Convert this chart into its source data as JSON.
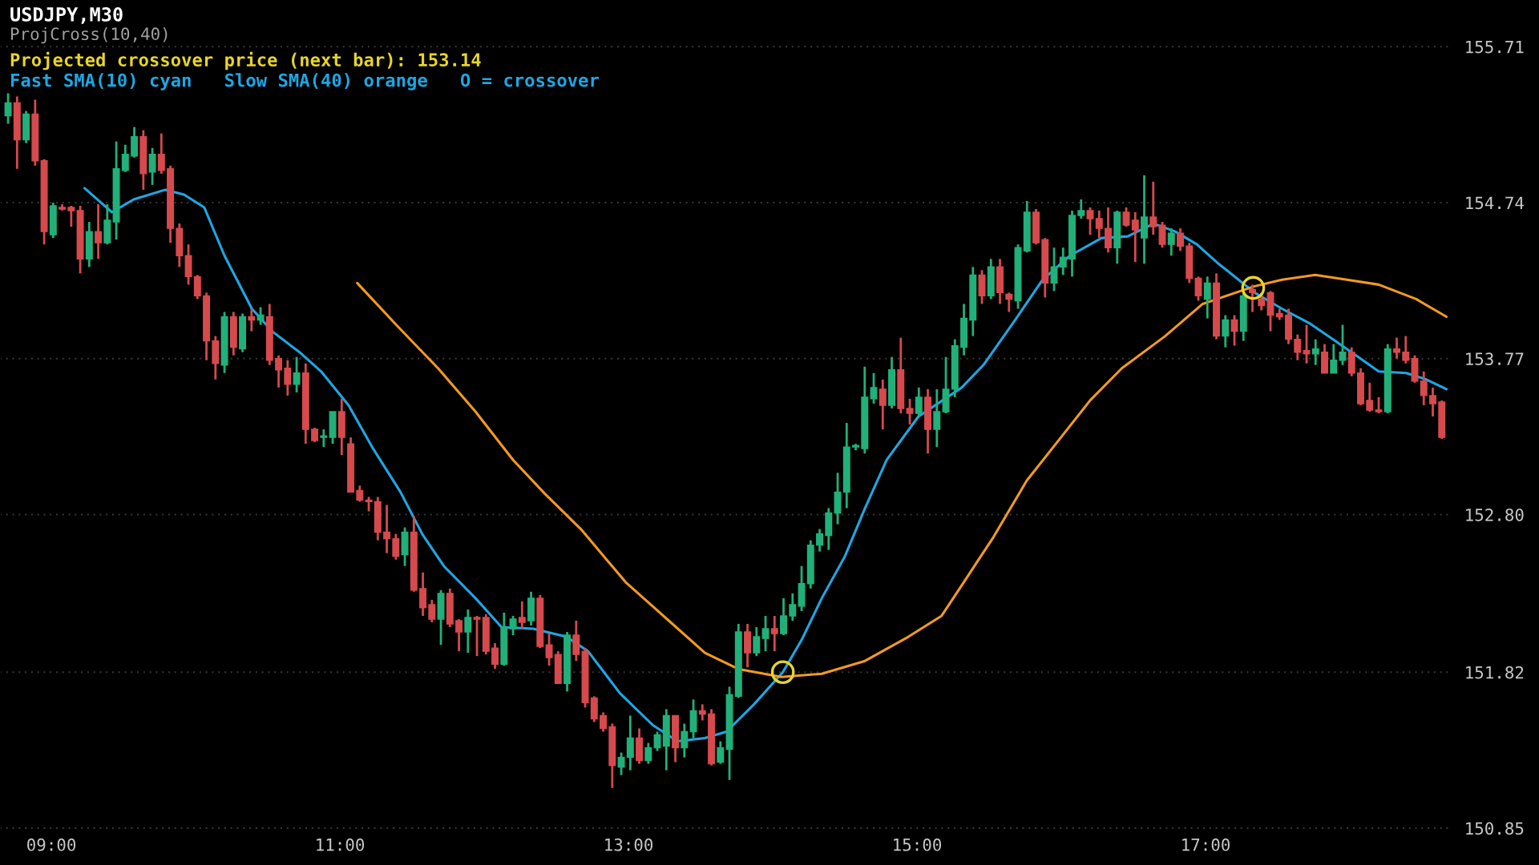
{
  "chart_data": {
    "type": "candlestick",
    "title": "USDJPY,M30",
    "subtitle": "ProjCross(10,40)",
    "annotations": [
      "Projected crossover price (next bar): 153.14",
      "Fast SMA(10) cyan   Slow SMA(40) orange   O = crossover"
    ],
    "colors": [
      "#22b07a",
      "#d64a4d",
      "#22b07a",
      "#d64a4d",
      "#d64a4d",
      "#22b07a",
      "#d64a4d",
      "#d64a4d",
      "#d64a4d",
      "#22b07a",
      "#d64a4d",
      "#22b07a",
      "#22b07a",
      "#22b07a",
      "#22b07a",
      "#d64a4d",
      "#22b07a",
      "#d64a4d",
      "#d64a4d",
      "#d64a4d",
      "#d64a4d",
      "#d64a4d",
      "#d64a4d",
      "#d64a4d",
      "#22b07a",
      "#d64a4d",
      "#22b07a",
      "#d64a4d",
      "#22b07a",
      "#d64a4d",
      "#d64a4d",
      "#d64a4d",
      "#22b07a",
      "#d64a4d",
      "#d64a4d",
      "#22b07a",
      "#22b07a",
      "#d64a4d",
      "#d64a4d",
      "#d64a4d",
      "#d64a4d",
      "#d64a4d",
      "#d64a4d",
      "#d64a4d",
      "#22b07a",
      "#d64a4d",
      "#d64a4d",
      "#d64a4d",
      "#22b07a",
      "#d64a4d",
      "#d64a4d",
      "#22b07a",
      "#d64a4d",
      "#d64a4d",
      "#d64a4d",
      "#22b07a",
      "#22b07a",
      "#d64a4d",
      "#22b07a",
      "#d64a4d",
      "#d64a4d",
      "#d64a4d",
      "#22b07a",
      "#d64a4d",
      "#d64a4d",
      "#d64a4d",
      "#d64a4d",
      "#d64a4d",
      "#22b07a",
      "#22b07a",
      "#d64a4d",
      "#22b07a",
      "#22b07a",
      "#22b07a",
      "#d64a4d",
      "#22b07a",
      "#22b07a",
      "#d64a4d",
      "#d64a4d",
      "#22b07a",
      "#22b07a",
      "#22b07a",
      "#d64a4d",
      "#22b07a",
      "#22b07a",
      "#d64a4d",
      "#22b07a",
      "#22b07a",
      "#22b07a",
      "#22b07a",
      "#22b07a",
      "#22b07a",
      "#22b07a",
      "#22b07a",
      "#22b07a",
      "#22b07a",
      "#22b07a",
      "#d64a4d",
      "#22b07a",
      "#d64a4d",
      "#d64a4d",
      "#22b07a",
      "#d64a4d",
      "#22b07a",
      "#22b07a",
      "#22b07a",
      "#22b07a",
      "#22b07a",
      "#d64a4d",
      "#22b07a",
      "#d64a4d",
      "#d64a4d",
      "#22b07a",
      "#22b07a",
      "#d64a4d",
      "#d64a4d",
      "#22b07a",
      "#22b07a",
      "#22b07a",
      "#22b07a",
      "#d64a4d",
      "#d64a4d",
      "#d64a4d",
      "#22b07a",
      "#d64a4d",
      "#d64a4d",
      "#22b07a",
      "#d64a4d",
      "#d64a4d",
      "#22b07a",
      "#d64a4d",
      "#d64a4d",
      "#d64a4d",
      "#22b07a",
      "#d64a4d",
      "#22b07a",
      "#d64a4d",
      "#22b07a",
      "#d64a4d",
      "#d64a4d",
      "#d64a4d",
      "#d64a4d",
      "#d64a4d",
      "#d64a4d",
      "#d64a4d",
      "#22b07a",
      "#d64a4d",
      "#22b07a",
      "#22b07a",
      "#d64a4d",
      "#d64a4d",
      "#d64a4d",
      "#d64a4d",
      "#22b07a",
      "#d64a4d",
      "#d64a4d",
      "#d64a4d",
      "#d64a4d",
      "#d64a4d",
      "#d64a4d"
    ],
    "x": [
      8.7,
      8.7625,
      8.825,
      8.8875,
      8.95,
      9.0125,
      9.075,
      9.1375,
      9.2,
      9.2625,
      9.325,
      9.3875,
      9.45,
      9.5125,
      9.575,
      9.6375,
      9.7,
      9.7625,
      9.825,
      9.8875,
      9.95,
      10.0125,
      10.075,
      10.1375,
      10.2,
      10.2625,
      10.325,
      10.3875,
      10.45,
      10.5125,
      10.575,
      10.6375,
      10.7,
      10.7625,
      10.825,
      10.8875,
      10.95,
      11.0125,
      11.075,
      11.1375,
      11.2,
      11.2625,
      11.325,
      11.3875,
      11.45,
      11.5125,
      11.575,
      11.6375,
      11.7,
      11.7625,
      11.825,
      11.8875,
      11.95,
      12.0125,
      12.075,
      12.1375,
      12.2,
      12.2625,
      12.325,
      12.3875,
      12.45,
      12.5125,
      12.575,
      12.6375,
      12.7,
      12.7625,
      12.825,
      12.8875,
      12.95,
      13.0125,
      13.075,
      13.1375,
      13.2,
      13.2625,
      13.325,
      13.3875,
      13.45,
      13.5125,
      13.575,
      13.6375,
      13.7,
      13.7625,
      13.825,
      13.8875,
      13.95,
      14.0125,
      14.075,
      14.1375,
      14.2,
      14.2625,
      14.325,
      14.3875,
      14.45,
      14.5125,
      14.575,
      14.6375,
      14.7,
      14.7625,
      14.825,
      14.8875,
      14.95,
      15.0125,
      15.075,
      15.1375,
      15.2,
      15.2625,
      15.325,
      15.3875,
      15.45,
      15.5125,
      15.575,
      15.6375,
      15.7,
      15.7625,
      15.825,
      15.8875,
      15.95,
      16.0125,
      16.075,
      16.1375,
      16.2,
      16.2625,
      16.325,
      16.3875,
      16.45,
      16.5125,
      16.575,
      16.6375,
      16.7,
      16.7625,
      16.825,
      16.8875,
      16.95,
      17.0125,
      17.075,
      17.1375,
      17.2,
      17.2625,
      17.325,
      17.3875,
      17.45,
      17.5125,
      17.575,
      17.6375,
      17.7,
      17.7625,
      17.825,
      17.8875,
      17.95,
      18.0125,
      18.075,
      18.1375,
      18.2,
      18.2625,
      18.325,
      18.3875,
      18.45,
      18.5125,
      18.575,
      18.6375
    ],
    "ohlc": [
      [
        155.28,
        155.42,
        155.23,
        155.36
      ],
      [
        155.36,
        155.4,
        154.95,
        155.13
      ],
      [
        155.13,
        155.31,
        155.11,
        155.29
      ],
      [
        155.29,
        155.38,
        154.97,
        155.0
      ],
      [
        155.0,
        155.01,
        154.48,
        154.56
      ],
      [
        154.54,
        154.74,
        154.52,
        154.72
      ],
      [
        154.71,
        154.73,
        154.69,
        154.7
      ],
      [
        154.71,
        154.72,
        154.59,
        154.69
      ],
      [
        154.69,
        154.72,
        154.3,
        154.39
      ],
      [
        154.39,
        154.62,
        154.34,
        154.56
      ],
      [
        154.56,
        154.73,
        154.39,
        154.49
      ],
      [
        154.49,
        154.73,
        154.48,
        154.63
      ],
      [
        154.62,
        155.12,
        154.51,
        154.95
      ],
      [
        154.94,
        155.1,
        154.93,
        155.04
      ],
      [
        155.03,
        155.21,
        155.02,
        155.15
      ],
      [
        155.15,
        155.19,
        154.82,
        154.92
      ],
      [
        154.93,
        155.08,
        154.85,
        155.04
      ],
      [
        155.04,
        155.17,
        154.92,
        154.94
      ],
      [
        154.95,
        154.97,
        154.49,
        154.58
      ],
      [
        154.58,
        154.61,
        154.34,
        154.41
      ],
      [
        154.41,
        154.48,
        154.23,
        154.28
      ],
      [
        154.28,
        154.29,
        154.14,
        154.16
      ],
      [
        154.16,
        154.18,
        153.76,
        153.88
      ],
      [
        153.88,
        153.91,
        153.64,
        153.74
      ],
      [
        153.73,
        154.06,
        153.68,
        154.03
      ],
      [
        154.03,
        154.06,
        153.79,
        153.84
      ],
      [
        153.83,
        154.05,
        153.81,
        154.03
      ],
      [
        154.03,
        154.08,
        153.94,
        154.01
      ],
      [
        154.01,
        154.09,
        153.98,
        154.04
      ],
      [
        154.03,
        154.11,
        153.73,
        153.76
      ],
      [
        153.77,
        153.79,
        153.59,
        153.7
      ],
      [
        153.71,
        153.76,
        153.54,
        153.61
      ],
      [
        153.61,
        153.78,
        153.56,
        153.68
      ],
      [
        153.68,
        153.74,
        153.24,
        153.33
      ],
      [
        153.33,
        153.34,
        153.25,
        153.26
      ],
      [
        153.28,
        153.33,
        153.22,
        153.29
      ],
      [
        153.28,
        153.44,
        153.24,
        153.44
      ],
      [
        153.44,
        153.52,
        153.17,
        153.28
      ],
      [
        153.24,
        153.28,
        152.94,
        152.94
      ],
      [
        152.95,
        152.98,
        152.88,
        152.89
      ],
      [
        152.89,
        152.91,
        152.82,
        152.88
      ],
      [
        152.88,
        152.91,
        152.64,
        152.69
      ],
      [
        152.69,
        152.86,
        152.56,
        152.65
      ],
      [
        152.65,
        152.68,
        152.52,
        152.54
      ],
      [
        152.55,
        152.72,
        152.48,
        152.69
      ],
      [
        152.69,
        152.79,
        152.32,
        152.33
      ],
      [
        152.34,
        152.44,
        152.17,
        152.22
      ],
      [
        152.24,
        152.27,
        152.13,
        152.15
      ],
      [
        152.15,
        152.33,
        151.99,
        152.31
      ],
      [
        152.31,
        152.34,
        152.1,
        152.12
      ],
      [
        152.14,
        152.15,
        151.95,
        152.07
      ],
      [
        152.07,
        152.21,
        151.94,
        152.16
      ],
      [
        152.16,
        152.17,
        151.92,
        152.15
      ],
      [
        152.16,
        152.18,
        151.93,
        151.95
      ],
      [
        151.97,
        152.0,
        151.84,
        151.87
      ],
      [
        151.87,
        152.19,
        151.86,
        152.1
      ],
      [
        152.09,
        152.17,
        152.05,
        152.15
      ],
      [
        152.16,
        152.26,
        152.09,
        152.13
      ],
      [
        152.14,
        152.32,
        152.11,
        152.28
      ],
      [
        152.28,
        152.3,
        151.97,
        151.98
      ],
      [
        151.99,
        152.06,
        151.86,
        151.91
      ],
      [
        151.93,
        151.95,
        151.75,
        151.75
      ],
      [
        151.75,
        152.07,
        151.7,
        152.05
      ],
      [
        152.05,
        152.14,
        151.89,
        151.93
      ],
      [
        151.95,
        151.97,
        151.6,
        151.63
      ],
      [
        151.66,
        151.67,
        151.51,
        151.53
      ],
      [
        151.55,
        151.57,
        151.45,
        151.47
      ],
      [
        151.48,
        151.5,
        151.1,
        151.24
      ],
      [
        151.23,
        151.32,
        151.18,
        151.29
      ],
      [
        151.29,
        151.55,
        151.21,
        151.41
      ],
      [
        151.41,
        151.47,
        151.25,
        151.27
      ],
      [
        151.27,
        151.38,
        151.25,
        151.35
      ],
      [
        151.35,
        151.45,
        151.33,
        151.43
      ],
      [
        151.36,
        151.59,
        151.21,
        151.55
      ],
      [
        151.55,
        151.55,
        151.26,
        151.35
      ],
      [
        151.35,
        151.5,
        151.29,
        151.45
      ],
      [
        151.45,
        151.65,
        151.41,
        151.58
      ],
      [
        151.58,
        151.62,
        151.52,
        151.56
      ],
      [
        151.56,
        151.59,
        151.24,
        151.25
      ],
      [
        151.26,
        151.39,
        151.25,
        151.35
      ],
      [
        151.34,
        151.73,
        151.15,
        151.68
      ],
      [
        151.67,
        152.12,
        151.66,
        152.07
      ],
      [
        152.07,
        152.12,
        151.85,
        151.94
      ],
      [
        151.94,
        152.1,
        151.92,
        152.04
      ],
      [
        152.03,
        152.17,
        151.95,
        152.09
      ],
      [
        152.09,
        152.17,
        151.95,
        152.06
      ],
      [
        152.06,
        152.28,
        152.05,
        152.17
      ],
      [
        152.17,
        152.31,
        152.14,
        152.24
      ],
      [
        152.23,
        152.48,
        152.2,
        152.37
      ],
      [
        152.37,
        152.64,
        152.34,
        152.61
      ],
      [
        152.61,
        152.71,
        152.57,
        152.68
      ],
      [
        152.67,
        152.84,
        152.58,
        152.81
      ],
      [
        152.81,
        153.06,
        152.74,
        152.94
      ],
      [
        152.94,
        153.37,
        152.84,
        153.22
      ],
      [
        153.22,
        153.24,
        153.2,
        153.23
      ],
      [
        153.21,
        153.72,
        153.18,
        153.53
      ],
      [
        153.52,
        153.68,
        153.49,
        153.59
      ],
      [
        153.58,
        153.64,
        153.33,
        153.48
      ],
      [
        153.48,
        153.78,
        153.46,
        153.7
      ],
      [
        153.7,
        153.9,
        153.43,
        153.46
      ],
      [
        153.46,
        153.52,
        153.36,
        153.43
      ],
      [
        153.43,
        153.59,
        153.41,
        153.53
      ],
      [
        153.53,
        153.58,
        153.18,
        153.33
      ],
      [
        153.33,
        153.58,
        153.22,
        153.44
      ],
      [
        153.44,
        153.78,
        153.43,
        153.58
      ],
      [
        153.58,
        153.89,
        153.53,
        153.85
      ],
      [
        153.84,
        154.11,
        153.79,
        154.02
      ],
      [
        154.01,
        154.34,
        153.91,
        154.29
      ],
      [
        154.29,
        154.32,
        154.11,
        154.16
      ],
      [
        154.16,
        154.39,
        154.14,
        154.34
      ],
      [
        154.34,
        154.39,
        154.11,
        154.18
      ],
      [
        154.17,
        154.18,
        154.06,
        154.14
      ],
      [
        154.13,
        154.48,
        154.08,
        154.46
      ],
      [
        154.44,
        154.75,
        154.43,
        154.68
      ],
      [
        154.68,
        154.7,
        154.48,
        154.49
      ],
      [
        154.51,
        154.52,
        154.15,
        154.24
      ],
      [
        154.24,
        154.46,
        154.19,
        154.34
      ],
      [
        154.34,
        154.46,
        154.29,
        154.4
      ],
      [
        154.39,
        154.69,
        154.28,
        154.66
      ],
      [
        154.66,
        154.76,
        154.64,
        154.69
      ],
      [
        154.69,
        154.71,
        154.54,
        154.64
      ],
      [
        154.64,
        154.69,
        154.52,
        154.58
      ],
      [
        154.58,
        154.71,
        154.43,
        154.46
      ],
      [
        154.46,
        154.69,
        154.36,
        154.68
      ],
      [
        154.68,
        154.71,
        154.59,
        154.6
      ],
      [
        154.63,
        154.68,
        154.37,
        154.57
      ],
      [
        154.52,
        154.91,
        154.36,
        154.65
      ],
      [
        154.65,
        154.87,
        154.54,
        154.59
      ],
      [
        154.6,
        154.62,
        154.46,
        154.48
      ],
      [
        154.48,
        154.58,
        154.41,
        154.55
      ],
      [
        154.55,
        154.58,
        154.44,
        154.47
      ],
      [
        154.47,
        154.49,
        154.24,
        154.27
      ],
      [
        154.27,
        154.28,
        154.13,
        154.16
      ],
      [
        154.14,
        154.28,
        154.02,
        154.24
      ],
      [
        154.24,
        154.3,
        153.89,
        153.91
      ],
      [
        153.91,
        154.04,
        153.84,
        154.01
      ],
      [
        154.01,
        154.04,
        153.85,
        153.94
      ],
      [
        153.94,
        154.19,
        153.88,
        154.16
      ],
      [
        154.2,
        154.23,
        154.06,
        154.18
      ],
      [
        154.14,
        154.18,
        154.07,
        154.1
      ],
      [
        154.18,
        154.19,
        153.94,
        154.04
      ],
      [
        154.05,
        154.08,
        154.01,
        154.03
      ],
      [
        154.04,
        154.08,
        153.86,
        153.89
      ],
      [
        153.89,
        153.92,
        153.76,
        153.81
      ],
      [
        153.82,
        153.98,
        153.74,
        153.8
      ],
      [
        153.8,
        153.89,
        153.73,
        153.83
      ],
      [
        153.81,
        153.86,
        153.68,
        153.68
      ],
      [
        153.68,
        153.86,
        153.68,
        153.76
      ],
      [
        153.76,
        153.98,
        153.73,
        153.81
      ],
      [
        153.81,
        153.84,
        153.66,
        153.68
      ],
      [
        153.68,
        153.71,
        153.48,
        153.49
      ],
      [
        153.51,
        153.62,
        153.44,
        153.45
      ],
      [
        153.45,
        153.53,
        153.43,
        153.44
      ],
      [
        153.44,
        153.86,
        153.43,
        153.83
      ],
      [
        153.83,
        153.9,
        153.77,
        153.81
      ],
      [
        153.81,
        153.91,
        153.74,
        153.76
      ],
      [
        153.77,
        153.79,
        153.62,
        153.63
      ],
      [
        153.63,
        153.69,
        153.48,
        153.54
      ],
      [
        153.54,
        153.59,
        153.41,
        153.49
      ],
      [
        153.5,
        153.51,
        153.27,
        153.28
      ]
    ],
    "series": [
      {
        "type": "line",
        "color": "#1ea7e4",
        "x": [
          9.23,
          9.42,
          9.57,
          9.79,
          9.92,
          10.06,
          10.2,
          10.39,
          10.53,
          10.72,
          10.87,
          11.06,
          11.23,
          11.42,
          11.57,
          11.72,
          11.94,
          12.12,
          12.34,
          12.57,
          12.72,
          12.94,
          13.17,
          13.34,
          13.53,
          13.68,
          13.87,
          14.07,
          14.2,
          14.34,
          14.5,
          14.64,
          14.79,
          15.01,
          15.31,
          15.46,
          15.68,
          15.87,
          16.06,
          16.28,
          16.46,
          16.64,
          16.79,
          16.94,
          17.09,
          17.34,
          17.53,
          17.72,
          17.9,
          18.09,
          18.2,
          18.39,
          18.53,
          18.67
        ],
        "values": [
          154.83,
          154.68,
          154.76,
          154.82,
          154.79,
          154.71,
          154.41,
          154.08,
          153.94,
          153.81,
          153.69,
          153.48,
          153.21,
          152.94,
          152.68,
          152.48,
          152.28,
          152.1,
          152.09,
          152.04,
          151.95,
          151.69,
          151.49,
          151.39,
          151.41,
          151.45,
          151.62,
          151.82,
          152.02,
          152.28,
          152.54,
          152.84,
          153.14,
          153.41,
          153.59,
          153.73,
          154.01,
          154.26,
          154.41,
          154.52,
          154.53,
          154.61,
          154.56,
          154.48,
          154.36,
          154.18,
          154.08,
          153.99,
          153.88,
          153.76,
          153.69,
          153.68,
          153.64,
          153.58
        ]
      },
      {
        "type": "line",
        "color": "#f39a1f",
        "x": [
          11.12,
          11.39,
          11.68,
          11.94,
          12.2,
          12.42,
          12.67,
          12.98,
          13.28,
          13.53,
          13.76,
          14.06,
          14.34,
          14.64,
          14.94,
          15.17,
          15.31,
          15.42,
          15.53,
          15.76,
          15.98,
          16.2,
          16.42,
          16.72,
          16.98,
          17.34,
          17.53,
          17.76,
          17.98,
          18.2,
          18.46,
          18.67
        ],
        "values": [
          154.24,
          153.98,
          153.71,
          153.44,
          153.14,
          152.93,
          152.71,
          152.38,
          152.14,
          151.94,
          151.84,
          151.79,
          151.81,
          151.89,
          152.04,
          152.17,
          152.36,
          152.51,
          152.66,
          153.01,
          153.26,
          153.51,
          153.71,
          153.91,
          154.11,
          154.22,
          154.26,
          154.29,
          154.26,
          154.23,
          154.14,
          154.03
        ]
      },
      {
        "type": "scatter",
        "color": "#e8d52a",
        "marker": "circle",
        "x": [
          14.07,
          17.33
        ],
        "values": [
          151.82,
          154.21
        ]
      }
    ],
    "xlim": [
      8.644,
      18.7
    ],
    "xticks": [
      {
        "value": 9,
        "label": "09:00"
      },
      {
        "value": 11,
        "label": "11:00"
      },
      {
        "value": 13,
        "label": "13:00"
      },
      {
        "value": 15,
        "label": "15:00"
      },
      {
        "value": 17,
        "label": "17:00"
      }
    ],
    "ylim": [
      150.83,
      156.0
    ],
    "yticks": [
      155.71,
      154.74,
      153.77,
      {
        "value": 152.8,
        "label": "152.80"
      },
      151.82,
      150.85
    ],
    "grid": "y"
  }
}
